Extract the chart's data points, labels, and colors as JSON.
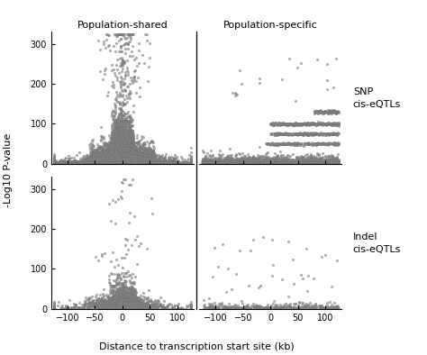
{
  "title_shared": "Population-shared",
  "title_specific": "Population-specific",
  "label_snp": "SNP\ncis-eQTLs",
  "label_indel": "Indel\ncis-eQTLs",
  "xlabel": "Distance to transcription start site (kb)",
  "ylabel": "-Log10 P-value",
  "xlim": [
    -130,
    130
  ],
  "ylim": [
    0,
    330
  ],
  "xticks": [
    -100,
    -50,
    0,
    50,
    100
  ],
  "yticks": [
    0,
    100,
    200,
    300
  ],
  "scatter_color": "#909090",
  "background_color": "#ffffff",
  "point_size": 3,
  "seed": 42,
  "snp_shared_n": 12000,
  "snp_specific_n": 3000,
  "indel_shared_n": 2000,
  "indel_specific_n": 400
}
